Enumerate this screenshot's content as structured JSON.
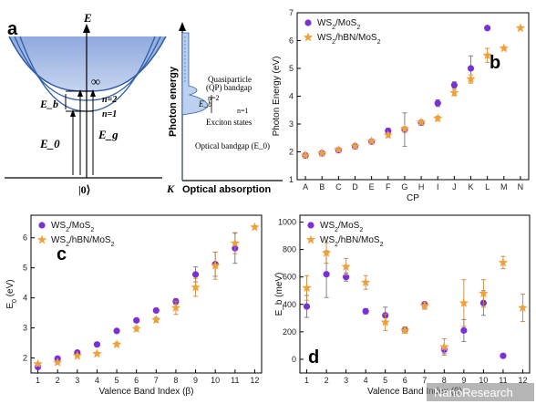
{
  "panels": {
    "a": {
      "label": "a",
      "left": {
        "axis_e": "E",
        "infinity": "∞",
        "n2": "n=2",
        "n1": "n=1",
        "eb": "E_b",
        "e0": "E_0",
        "eg": "E_g",
        "ket": "|0⟩",
        "axis_k": "K"
      },
      "right": {
        "ylabel": "Photon energy",
        "xlabel": "Optical absorption",
        "qp_line1": "Quasiparticle",
        "qp_line2": "(QP) bandgap",
        "n2": "n=2",
        "n1": "n=1",
        "eb": "E_b",
        "exciton": "Exciton states",
        "optical": "Optical bandgap (E_0)"
      }
    },
    "b": {
      "label": "b"
    },
    "c": {
      "label": "c"
    },
    "d": {
      "label": "d"
    }
  },
  "watermark": "NanoResearch",
  "colors": {
    "ws2_mos2": "#7b2fd6",
    "ws2_hbn_mos2": "#f0a23a",
    "band_fill": "#a9bfe6",
    "band_line": "#2e5ea8"
  },
  "chart_data": [
    {
      "id": "b",
      "type": "scatter",
      "xlabel": "CP",
      "ylabel": "Photon Energy (eV)",
      "categories": [
        "A",
        "B",
        "C",
        "D",
        "E",
        "F",
        "G",
        "H",
        "I",
        "J",
        "K",
        "L",
        "M",
        "N"
      ],
      "ylim": [
        1,
        7
      ],
      "yticks": [
        1,
        2,
        3,
        4,
        5,
        6,
        7
      ],
      "legend_position": "top-left",
      "series": [
        {
          "name": "WS2/MoS2",
          "marker": "circle",
          "values": [
            1.87,
            1.95,
            2.06,
            2.2,
            2.37,
            2.75,
            2.8,
            3.05,
            3.75,
            4.4,
            5.0,
            6.45,
            null,
            null
          ],
          "errors": [
            0.05,
            0.05,
            0.05,
            0.05,
            0.05,
            0.1,
            0.6,
            0.08,
            0.12,
            0.12,
            0.45,
            0.0,
            null,
            null
          ]
        },
        {
          "name": "WS2/hBN/MoS2",
          "marker": "star",
          "values": [
            1.87,
            1.95,
            2.07,
            2.2,
            2.38,
            2.6,
            2.82,
            3.06,
            3.2,
            4.12,
            4.62,
            5.47,
            5.72,
            6.45
          ],
          "errors": [
            0.04,
            0.04,
            0.04,
            0.05,
            0.06,
            0.08,
            0.08,
            0.06,
            0.08,
            0.1,
            0.15,
            0.25,
            0.06,
            0.0
          ]
        }
      ]
    },
    {
      "id": "c",
      "type": "scatter",
      "xlabel": "Valence Band Index (β)",
      "ylabel": "E_0 (eV)",
      "x": [
        1,
        2,
        3,
        4,
        5,
        6,
        7,
        8,
        9,
        10,
        11,
        12
      ],
      "xlim": [
        1,
        12
      ],
      "ylim": [
        1.5,
        6.75
      ],
      "yticks": [
        2,
        3,
        4,
        5,
        6
      ],
      "legend_position": "top-left",
      "series": [
        {
          "name": "WS2/MoS2",
          "marker": "circle",
          "values": [
            1.7,
            1.98,
            2.18,
            2.45,
            2.9,
            3.25,
            3.58,
            3.88,
            4.78,
            5.12,
            5.65,
            null
          ],
          "errors": [
            0.04,
            0.04,
            0.05,
            0.05,
            0.06,
            0.06,
            0.07,
            0.1,
            0.25,
            0.4,
            0.5,
            null
          ]
        },
        {
          "name": "WS2/hBN/MoS2",
          "marker": "star",
          "values": [
            1.8,
            1.85,
            2.07,
            2.14,
            2.45,
            2.97,
            3.27,
            3.67,
            4.35,
            5.07,
            5.82,
            6.35
          ],
          "errors": [
            0.04,
            0.04,
            0.05,
            0.05,
            0.06,
            0.08,
            0.08,
            0.22,
            0.3,
            0.45,
            0.35,
            0.05
          ]
        }
      ]
    },
    {
      "id": "d",
      "type": "scatter",
      "xlabel": "Valence Band Index (β)",
      "ylabel": "E_b (meV)",
      "x": [
        1,
        2,
        3,
        4,
        5,
        6,
        7,
        8,
        9,
        10,
        11,
        12
      ],
      "xlim": [
        1,
        12
      ],
      "ylim": [
        -100,
        1050
      ],
      "yticks": [
        0,
        200,
        400,
        600,
        800,
        1000
      ],
      "legend_position": "top-left",
      "series": [
        {
          "name": "WS2/MoS2",
          "marker": "circle",
          "values": [
            385,
            620,
            600,
            350,
            320,
            215,
            400,
            70,
            210,
            410,
            25,
            null
          ],
          "errors": [
            80,
            170,
            30,
            20,
            60,
            20,
            20,
            30,
            80,
            90,
            10,
            null
          ]
        },
        {
          "name": "WS2/hBN/MoS2",
          "marker": "star",
          "values": [
            520,
            775,
            675,
            560,
            270,
            210,
            390,
            90,
            410,
            480,
            705,
            375
          ],
          "errors": [
            90,
            75,
            60,
            50,
            60,
            20,
            25,
            60,
            170,
            100,
            45,
            100
          ]
        }
      ]
    }
  ]
}
